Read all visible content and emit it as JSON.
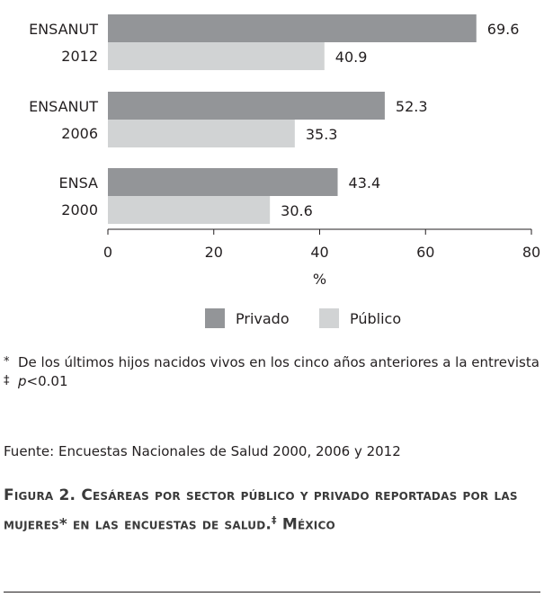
{
  "chart_data": {
    "type": "bar",
    "orientation": "horizontal",
    "categories": [
      {
        "lines": [
          "ENSANUT",
          "2012"
        ]
      },
      {
        "lines": [
          "ENSANUT",
          "2006"
        ]
      },
      {
        "lines": [
          "ENSA",
          "2000"
        ]
      }
    ],
    "series": [
      {
        "name": "Privado",
        "color": "#939598",
        "values": [
          69.6,
          52.3,
          43.4
        ]
      },
      {
        "name": "Público",
        "color": "#d1d3d4",
        "values": [
          40.9,
          35.3,
          30.6
        ]
      }
    ],
    "value_labels": [
      [
        "69.6",
        "52.3",
        "43.4"
      ],
      [
        "40.9",
        "35.3",
        "30.6"
      ]
    ],
    "xlim": [
      0,
      80
    ],
    "xticks": [
      0,
      20,
      40,
      60,
      80
    ],
    "xlabel": "%",
    "grid": false,
    "legend_position": "bottom-center"
  },
  "notes": {
    "note1_mark": "*",
    "note1_text": "De los últimos hijos nacidos vivos en los cinco años anteriores a la entrevista",
    "note2_mark": "‡",
    "note2_p": "p",
    "note2_rest": "<0.01"
  },
  "source": "Fuente: Encuestas Nacionales de Salud 2000, 2006 y 2012",
  "caption": {
    "label": "Figura 2.",
    "text": "Cesáreas por sector público y privado reportadas por las mujeres* en las encuestas de salud.",
    "mark": "‡",
    "tail": "México"
  }
}
